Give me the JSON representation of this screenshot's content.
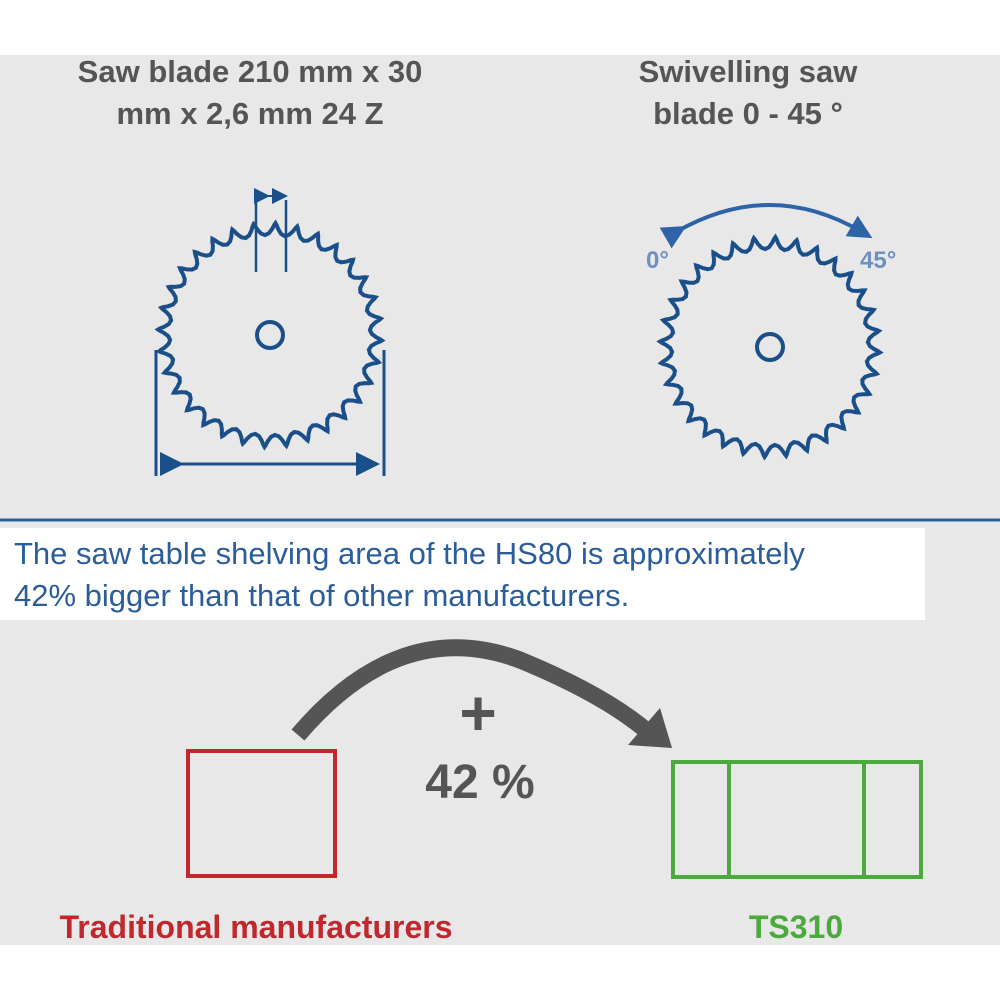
{
  "left_panel": {
    "title_lines": [
      "Saw blade 210 mm x 30",
      "mm x 2,6 mm 24 Z"
    ]
  },
  "right_panel": {
    "title_lines": [
      "Swivelling saw",
      "blade 0 - 45 °"
    ],
    "angle_start": "0°",
    "angle_end": "45°"
  },
  "info_text_lines": [
    "The saw table shelving area of the HS80 is approximately",
    "42% bigger than that of other manufacturers."
  ],
  "comparison": {
    "plus": "+",
    "increase": "42 %",
    "left_label": "Traditional manufacturers",
    "right_label": "TS310"
  }
}
